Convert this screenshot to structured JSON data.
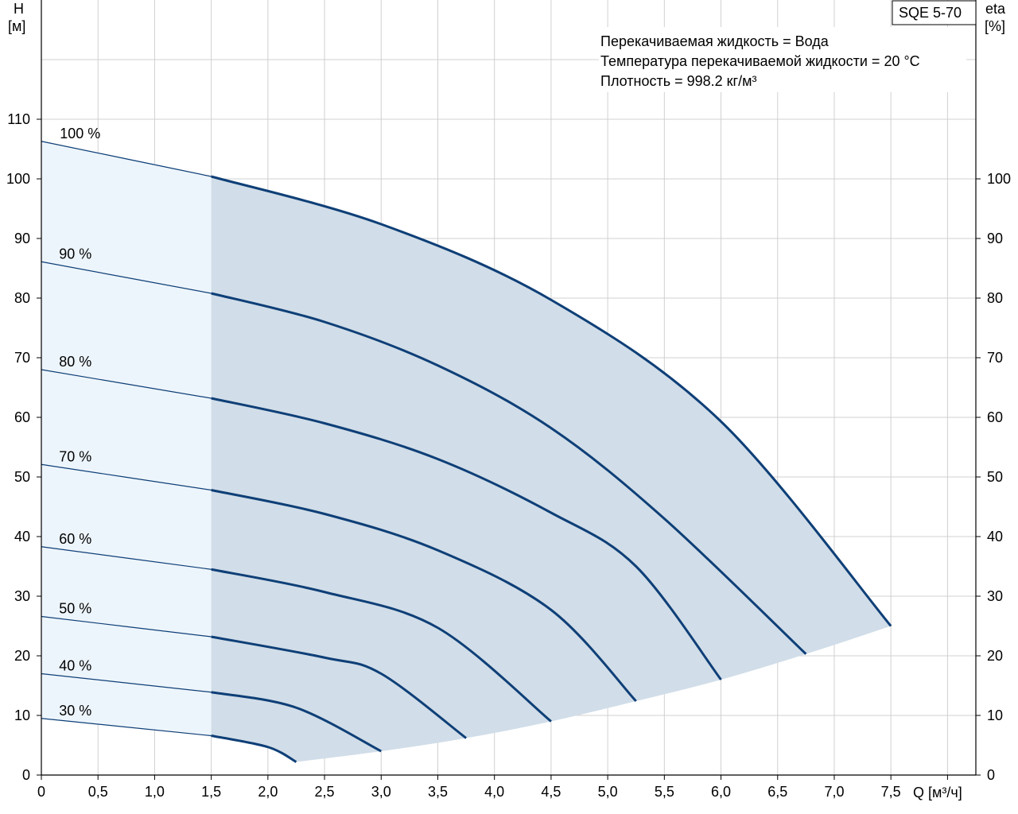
{
  "chart_data": {
    "type": "line",
    "model": "SQE 5-70",
    "info": [
      "Перекачиваемая жидкость = Вода",
      "Температура перекачиваемой жидкости = 20 °C",
      "Плотность = 998.2 кг/м³"
    ],
    "y_left_label": [
      "H",
      "[м]"
    ],
    "y_right_label": [
      "eta",
      "[%]"
    ],
    "x_label": "Q [м³/ч]",
    "xlim": [
      0,
      8.25
    ],
    "ylim": [
      0,
      130
    ],
    "x_ticks": [
      "0",
      "0,5",
      "1,0",
      "1,5",
      "2,0",
      "2,5",
      "3,0",
      "3,5",
      "4,0",
      "4,5",
      "5,0",
      "5,5",
      "6,0",
      "6,5",
      "7,0",
      "7,5"
    ],
    "y_left_ticks": [
      "0",
      "10",
      "20",
      "30",
      "40",
      "50",
      "60",
      "70",
      "80",
      "90",
      "100",
      "110"
    ],
    "y_right_ticks": [
      "0",
      "10",
      "20",
      "30",
      "40",
      "50",
      "60",
      "70",
      "80",
      "90",
      "100"
    ],
    "recommended_range_start_q": 1.5,
    "series": [
      {
        "name": "100 %",
        "points": [
          [
            0,
            106.3
          ],
          [
            1.5,
            100.4
          ],
          [
            3.0,
            92.4
          ],
          [
            4.5,
            79.7
          ],
          [
            6.0,
            59.3
          ],
          [
            7.5,
            25.0
          ]
        ]
      },
      {
        "name": "90 %",
        "points": [
          [
            0,
            86.1
          ],
          [
            1.5,
            80.8
          ],
          [
            2.5,
            76.0
          ],
          [
            3.5,
            68.7
          ],
          [
            4.5,
            58.2
          ],
          [
            5.5,
            43.0
          ],
          [
            6.75,
            20.3
          ]
        ]
      },
      {
        "name": "80 %",
        "points": [
          [
            0,
            68.0
          ],
          [
            1.5,
            63.2
          ],
          [
            2.5,
            59.0
          ],
          [
            3.5,
            53.0
          ],
          [
            4.5,
            44.0
          ],
          [
            5.25,
            35.0
          ],
          [
            6.0,
            16.0
          ]
        ]
      },
      {
        "name": "70 %",
        "points": [
          [
            0,
            52.1
          ],
          [
            1.5,
            47.8
          ],
          [
            2.5,
            43.8
          ],
          [
            3.5,
            37.7
          ],
          [
            4.5,
            27.7
          ],
          [
            5.25,
            12.4
          ]
        ]
      },
      {
        "name": "60 %",
        "points": [
          [
            0,
            38.3
          ],
          [
            1.5,
            34.5
          ],
          [
            2.5,
            30.7
          ],
          [
            3.5,
            24.7
          ],
          [
            4.5,
            9.0
          ]
        ]
      },
      {
        "name": "50 %",
        "points": [
          [
            0,
            26.6
          ],
          [
            1.5,
            23.2
          ],
          [
            2.5,
            19.7
          ],
          [
            3.0,
            17.0
          ],
          [
            3.75,
            6.2
          ]
        ]
      },
      {
        "name": "40 %",
        "points": [
          [
            0,
            17.0
          ],
          [
            1.5,
            13.9
          ],
          [
            2.25,
            11.3
          ],
          [
            3.0,
            4.0
          ]
        ]
      },
      {
        "name": "30 %",
        "points": [
          [
            0,
            9.5
          ],
          [
            1.5,
            6.6
          ],
          [
            2.0,
            4.7
          ],
          [
            2.25,
            2.2
          ]
        ]
      }
    ]
  }
}
